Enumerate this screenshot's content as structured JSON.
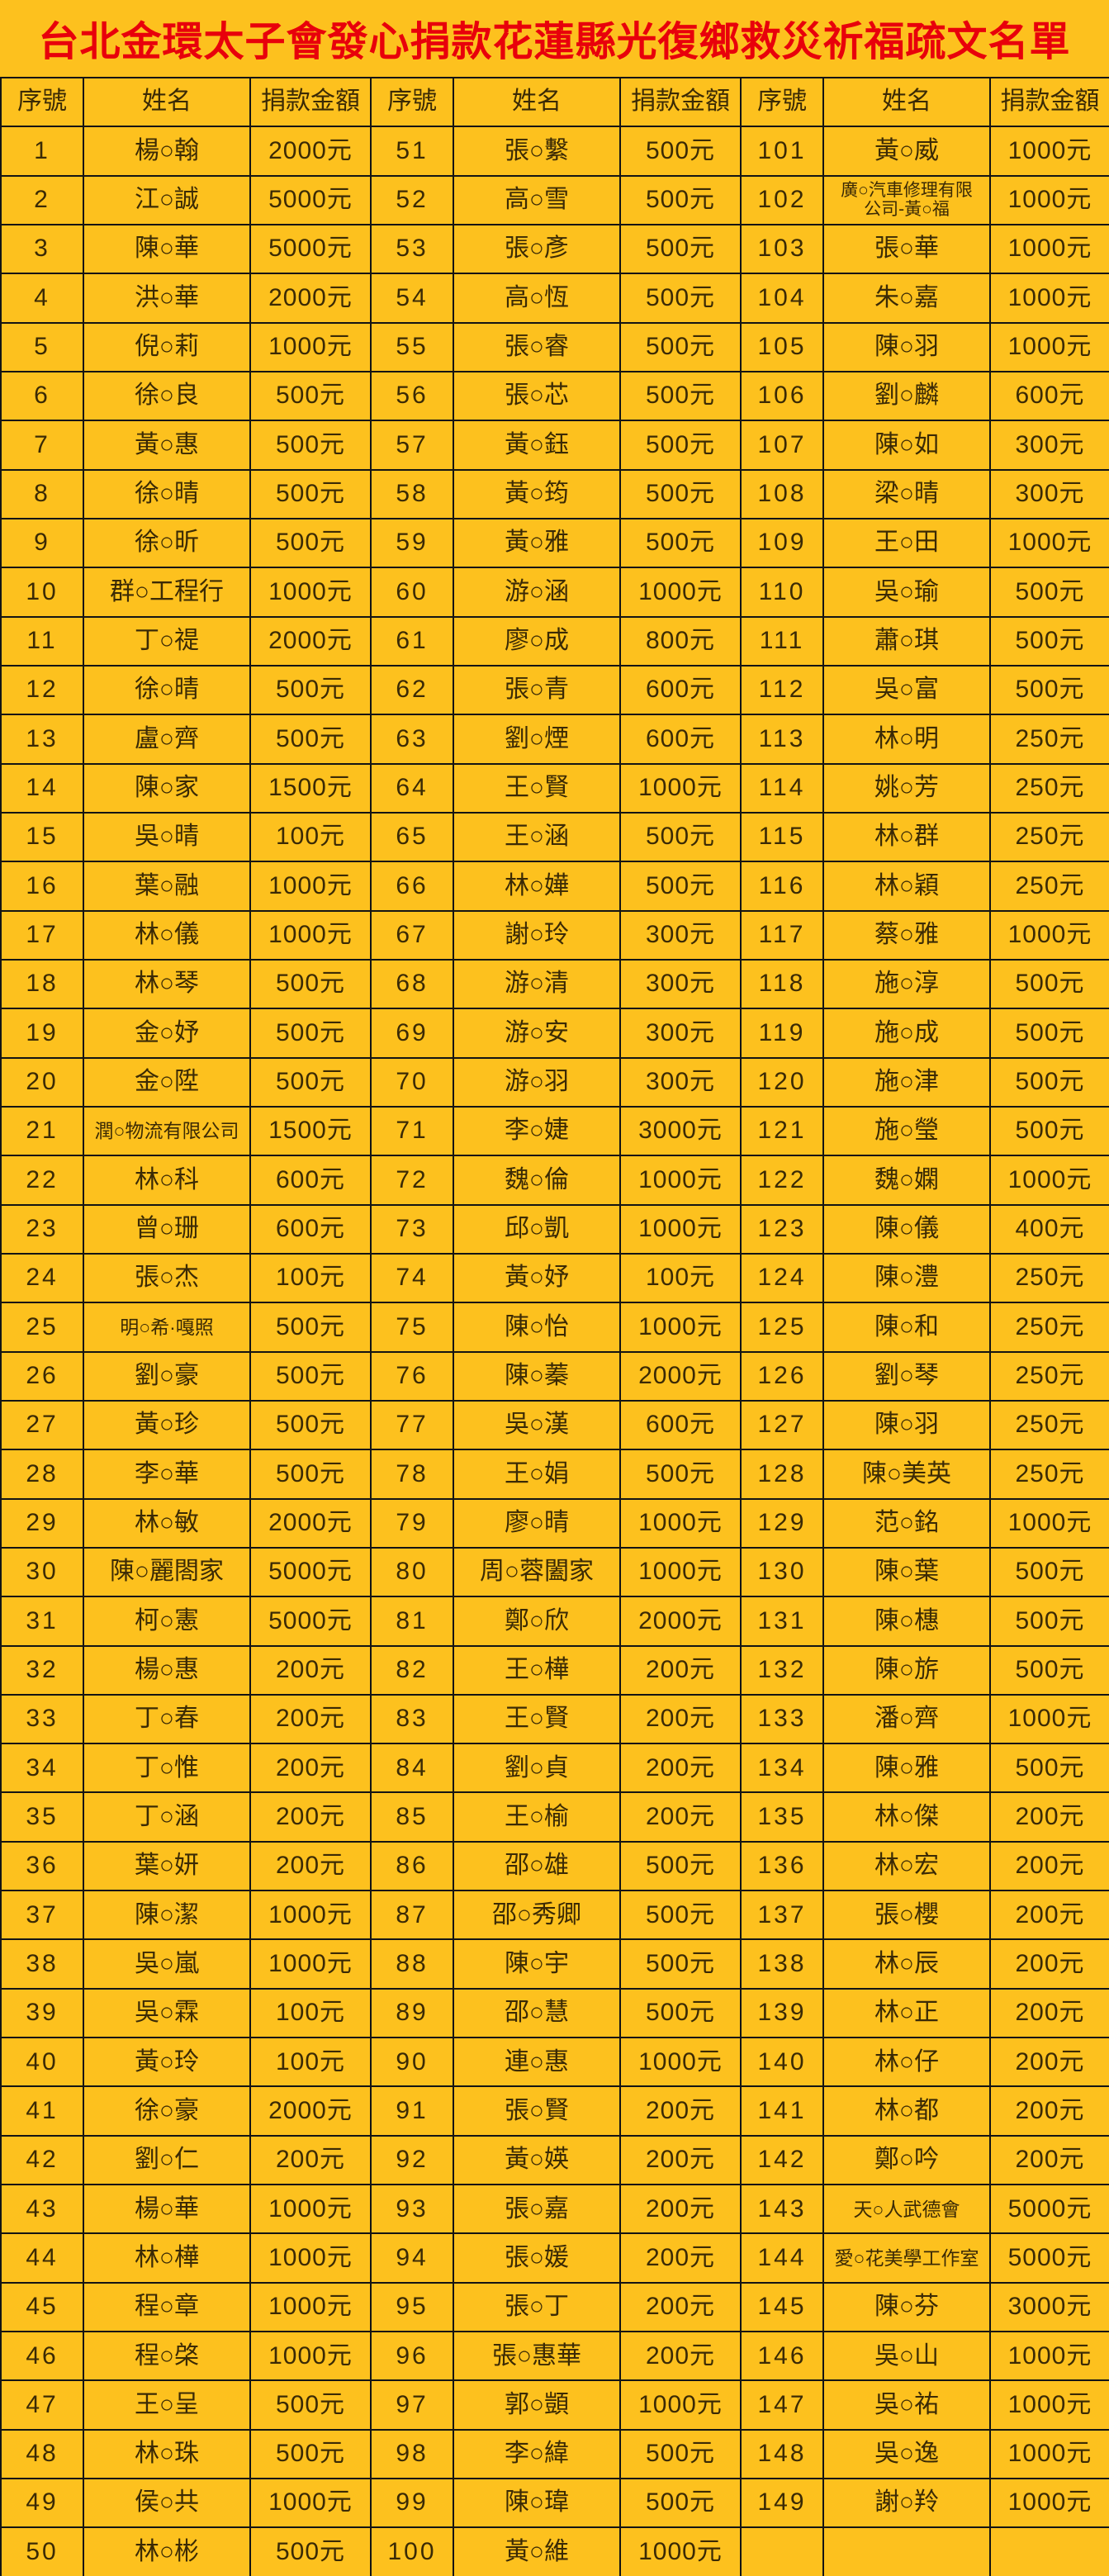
{
  "title": "台北金環太子會發心捐款花蓮縣光復鄉救災祈福疏文名單",
  "columns": [
    "序號",
    "姓名",
    "捐款金額"
  ],
  "colors": {
    "background": "#FDC11E",
    "title_text": "#E8000B",
    "cell_text": "#3B2A05",
    "grid_border": "#141414"
  },
  "groups": [
    [
      {
        "no": "1",
        "name": "楊○翰",
        "amount": "2000元"
      },
      {
        "no": "2",
        "name": "江○誠",
        "amount": "5000元"
      },
      {
        "no": "3",
        "name": "陳○華",
        "amount": "5000元"
      },
      {
        "no": "4",
        "name": "洪○華",
        "amount": "2000元"
      },
      {
        "no": "5",
        "name": "倪○莉",
        "amount": "1000元"
      },
      {
        "no": "6",
        "name": "徐○良",
        "amount": "500元"
      },
      {
        "no": "7",
        "name": "黃○惠",
        "amount": "500元"
      },
      {
        "no": "8",
        "name": "徐○晴",
        "amount": "500元"
      },
      {
        "no": "9",
        "name": "徐○昕",
        "amount": "500元"
      },
      {
        "no": "10",
        "name": "群○工程行",
        "amount": "1000元"
      },
      {
        "no": "11",
        "name": "丁○禔",
        "amount": "2000元"
      },
      {
        "no": "12",
        "name": "徐○晴",
        "amount": "500元"
      },
      {
        "no": "13",
        "name": "盧○齊",
        "amount": "500元"
      },
      {
        "no": "14",
        "name": "陳○家",
        "amount": "1500元"
      },
      {
        "no": "15",
        "name": "吳○晴",
        "amount": "100元"
      },
      {
        "no": "16",
        "name": "葉○融",
        "amount": "1000元"
      },
      {
        "no": "17",
        "name": "林○儀",
        "amount": "1000元"
      },
      {
        "no": "18",
        "name": "林○琴",
        "amount": "500元"
      },
      {
        "no": "19",
        "name": "金○妤",
        "amount": "500元"
      },
      {
        "no": "20",
        "name": "金○陞",
        "amount": "500元"
      },
      {
        "no": "21",
        "name": "潤○物流有限公司",
        "amount": "1500元"
      },
      {
        "no": "22",
        "name": "林○科",
        "amount": "600元"
      },
      {
        "no": "23",
        "name": "曾○珊",
        "amount": "600元"
      },
      {
        "no": "24",
        "name": "張○杰",
        "amount": "100元"
      },
      {
        "no": "25",
        "name": "明○希·嘎照",
        "amount": "500元"
      },
      {
        "no": "26",
        "name": "劉○豪",
        "amount": "500元"
      },
      {
        "no": "27",
        "name": "黃○珍",
        "amount": "500元"
      },
      {
        "no": "28",
        "name": "李○華",
        "amount": "500元"
      },
      {
        "no": "29",
        "name": "林○敏",
        "amount": "2000元"
      },
      {
        "no": "30",
        "name": "陳○麗閤家",
        "amount": "5000元"
      },
      {
        "no": "31",
        "name": "柯○憲",
        "amount": "5000元"
      },
      {
        "no": "32",
        "name": "楊○惠",
        "amount": "200元"
      },
      {
        "no": "33",
        "name": "丁○春",
        "amount": "200元"
      },
      {
        "no": "34",
        "name": "丁○惟",
        "amount": "200元"
      },
      {
        "no": "35",
        "name": "丁○涵",
        "amount": "200元"
      },
      {
        "no": "36",
        "name": "葉○妍",
        "amount": "200元"
      },
      {
        "no": "37",
        "name": "陳○潔",
        "amount": "1000元"
      },
      {
        "no": "38",
        "name": "吳○嵐",
        "amount": "1000元"
      },
      {
        "no": "39",
        "name": "吳○霖",
        "amount": "100元"
      },
      {
        "no": "40",
        "name": "黃○玲",
        "amount": "100元"
      },
      {
        "no": "41",
        "name": "徐○豪",
        "amount": "2000元"
      },
      {
        "no": "42",
        "name": "劉○仁",
        "amount": "200元"
      },
      {
        "no": "43",
        "name": "楊○華",
        "amount": "1000元"
      },
      {
        "no": "44",
        "name": "林○樺",
        "amount": "1000元"
      },
      {
        "no": "45",
        "name": "程○章",
        "amount": "1000元"
      },
      {
        "no": "46",
        "name": "程○棨",
        "amount": "1000元"
      },
      {
        "no": "47",
        "name": "王○呈",
        "amount": "500元"
      },
      {
        "no": "48",
        "name": "林○珠",
        "amount": "500元"
      },
      {
        "no": "49",
        "name": "侯○共",
        "amount": "1000元"
      },
      {
        "no": "50",
        "name": "林○彬",
        "amount": "500元"
      }
    ],
    [
      {
        "no": "51",
        "name": "張○繫",
        "amount": "500元"
      },
      {
        "no": "52",
        "name": "高○雪",
        "amount": "500元"
      },
      {
        "no": "53",
        "name": "張○彥",
        "amount": "500元"
      },
      {
        "no": "54",
        "name": "高○恆",
        "amount": "500元"
      },
      {
        "no": "55",
        "name": "張○睿",
        "amount": "500元"
      },
      {
        "no": "56",
        "name": "張○芯",
        "amount": "500元"
      },
      {
        "no": "57",
        "name": "黃○鈺",
        "amount": "500元"
      },
      {
        "no": "58",
        "name": "黃○筠",
        "amount": "500元"
      },
      {
        "no": "59",
        "name": "黃○雅",
        "amount": "500元"
      },
      {
        "no": "60",
        "name": "游○涵",
        "amount": "1000元"
      },
      {
        "no": "61",
        "name": "廖○成",
        "amount": "800元"
      },
      {
        "no": "62",
        "name": "張○青",
        "amount": "600元"
      },
      {
        "no": "63",
        "name": "劉○煙",
        "amount": "600元"
      },
      {
        "no": "64",
        "name": "王○賢",
        "amount": "1000元"
      },
      {
        "no": "65",
        "name": "王○涵",
        "amount": "500元"
      },
      {
        "no": "66",
        "name": "林○嬅",
        "amount": "500元"
      },
      {
        "no": "67",
        "name": "謝○玲",
        "amount": "300元"
      },
      {
        "no": "68",
        "name": "游○清",
        "amount": "300元"
      },
      {
        "no": "69",
        "name": "游○安",
        "amount": "300元"
      },
      {
        "no": "70",
        "name": "游○羽",
        "amount": "300元"
      },
      {
        "no": "71",
        "name": "李○婕",
        "amount": "3000元"
      },
      {
        "no": "72",
        "name": "魏○倫",
        "amount": "1000元"
      },
      {
        "no": "73",
        "name": "邱○凱",
        "amount": "1000元"
      },
      {
        "no": "74",
        "name": "黃○妤",
        "amount": "100元"
      },
      {
        "no": "75",
        "name": "陳○怡",
        "amount": "1000元"
      },
      {
        "no": "76",
        "name": "陳○蓁",
        "amount": "2000元"
      },
      {
        "no": "77",
        "name": "吳○漢",
        "amount": "600元"
      },
      {
        "no": "78",
        "name": "王○娟",
        "amount": "500元"
      },
      {
        "no": "79",
        "name": "廖○晴",
        "amount": "1000元"
      },
      {
        "no": "80",
        "name": "周○蓉闔家",
        "amount": "1000元"
      },
      {
        "no": "81",
        "name": "鄭○欣",
        "amount": "2000元"
      },
      {
        "no": "82",
        "name": "王○樺",
        "amount": "200元"
      },
      {
        "no": "83",
        "name": "王○賢",
        "amount": "200元"
      },
      {
        "no": "84",
        "name": "劉○貞",
        "amount": "200元"
      },
      {
        "no": "85",
        "name": "王○榆",
        "amount": "200元"
      },
      {
        "no": "86",
        "name": "邵○雄",
        "amount": "500元"
      },
      {
        "no": "87",
        "name": "邵○秀卿",
        "amount": "500元"
      },
      {
        "no": "88",
        "name": "陳○宇",
        "amount": "500元"
      },
      {
        "no": "89",
        "name": "邵○慧",
        "amount": "500元"
      },
      {
        "no": "90",
        "name": "連○惠",
        "amount": "1000元"
      },
      {
        "no": "91",
        "name": "張○賢",
        "amount": "200元"
      },
      {
        "no": "92",
        "name": "黃○媖",
        "amount": "200元"
      },
      {
        "no": "93",
        "name": "張○嘉",
        "amount": "200元"
      },
      {
        "no": "94",
        "name": "張○媛",
        "amount": "200元"
      },
      {
        "no": "95",
        "name": "張○丁",
        "amount": "200元"
      },
      {
        "no": "96",
        "name": "張○惠華",
        "amount": "200元"
      },
      {
        "no": "97",
        "name": "郭○顗",
        "amount": "1000元"
      },
      {
        "no": "98",
        "name": "李○緯",
        "amount": "500元"
      },
      {
        "no": "99",
        "name": "陳○瑋",
        "amount": "500元"
      },
      {
        "no": "100",
        "name": "黃○維",
        "amount": "1000元"
      }
    ],
    [
      {
        "no": "101",
        "name": "黃○威",
        "amount": "1000元"
      },
      {
        "no": "102",
        "name": "廣○汽車修理有限\n公司-黃○福",
        "amount": "1000元"
      },
      {
        "no": "103",
        "name": "張○華",
        "amount": "1000元"
      },
      {
        "no": "104",
        "name": "朱○嘉",
        "amount": "1000元"
      },
      {
        "no": "105",
        "name": "陳○羽",
        "amount": "1000元"
      },
      {
        "no": "106",
        "name": "劉○麟",
        "amount": "600元"
      },
      {
        "no": "107",
        "name": "陳○如",
        "amount": "300元"
      },
      {
        "no": "108",
        "name": "梁○晴",
        "amount": "300元"
      },
      {
        "no": "109",
        "name": "王○田",
        "amount": "1000元"
      },
      {
        "no": "110",
        "name": "吳○瑜",
        "amount": "500元"
      },
      {
        "no": "111",
        "name": "蕭○琪",
        "amount": "500元"
      },
      {
        "no": "112",
        "name": "吳○富",
        "amount": "500元"
      },
      {
        "no": "113",
        "name": "林○明",
        "amount": "250元"
      },
      {
        "no": "114",
        "name": "姚○芳",
        "amount": "250元"
      },
      {
        "no": "115",
        "name": "林○群",
        "amount": "250元"
      },
      {
        "no": "116",
        "name": "林○穎",
        "amount": "250元"
      },
      {
        "no": "117",
        "name": "蔡○雅",
        "amount": "1000元"
      },
      {
        "no": "118",
        "name": "施○淳",
        "amount": "500元"
      },
      {
        "no": "119",
        "name": "施○成",
        "amount": "500元"
      },
      {
        "no": "120",
        "name": "施○津",
        "amount": "500元"
      },
      {
        "no": "121",
        "name": "施○瑩",
        "amount": "500元"
      },
      {
        "no": "122",
        "name": "魏○嫻",
        "amount": "1000元"
      },
      {
        "no": "123",
        "name": "陳○儀",
        "amount": "400元"
      },
      {
        "no": "124",
        "name": "陳○澧",
        "amount": "250元"
      },
      {
        "no": "125",
        "name": "陳○和",
        "amount": "250元"
      },
      {
        "no": "126",
        "name": "劉○琴",
        "amount": "250元"
      },
      {
        "no": "127",
        "name": "陳○羽",
        "amount": "250元"
      },
      {
        "no": "128",
        "name": "陳○美英",
        "amount": "250元"
      },
      {
        "no": "129",
        "name": "范○銘",
        "amount": "1000元"
      },
      {
        "no": "130",
        "name": "陳○葉",
        "amount": "500元"
      },
      {
        "no": "131",
        "name": "陳○橞",
        "amount": "500元"
      },
      {
        "no": "132",
        "name": "陳○旂",
        "amount": "500元"
      },
      {
        "no": "133",
        "name": "潘○齊",
        "amount": "1000元"
      },
      {
        "no": "134",
        "name": "陳○雅",
        "amount": "500元"
      },
      {
        "no": "135",
        "name": "林○傑",
        "amount": "200元"
      },
      {
        "no": "136",
        "name": "林○宏",
        "amount": "200元"
      },
      {
        "no": "137",
        "name": "張○櫻",
        "amount": "200元"
      },
      {
        "no": "138",
        "name": "林○辰",
        "amount": "200元"
      },
      {
        "no": "139",
        "name": "林○正",
        "amount": "200元"
      },
      {
        "no": "140",
        "name": "林○仔",
        "amount": "200元"
      },
      {
        "no": "141",
        "name": "林○都",
        "amount": "200元"
      },
      {
        "no": "142",
        "name": "鄭○吟",
        "amount": "200元"
      },
      {
        "no": "143",
        "name": "天○人武德會",
        "amount": "5000元"
      },
      {
        "no": "144",
        "name": "愛○花美學工作室",
        "amount": "5000元"
      },
      {
        "no": "145",
        "name": "陳○芬",
        "amount": "3000元"
      },
      {
        "no": "146",
        "name": "吳○山",
        "amount": "1000元"
      },
      {
        "no": "147",
        "name": "吳○祐",
        "amount": "1000元"
      },
      {
        "no": "148",
        "name": "吳○逸",
        "amount": "1000元"
      },
      {
        "no": "149",
        "name": "謝○羚",
        "amount": "1000元"
      },
      null
    ]
  ]
}
